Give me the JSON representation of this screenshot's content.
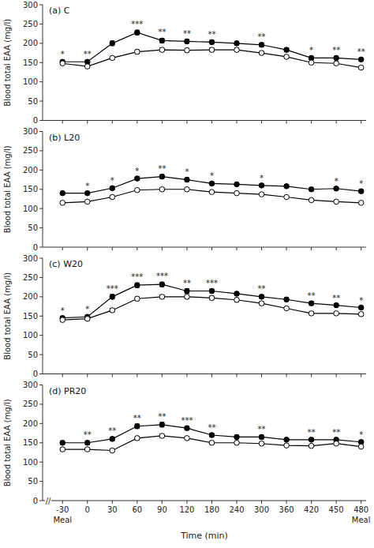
{
  "chart_data": [
    {
      "type": "line",
      "title": "(a) C",
      "ylabel": "Blood total EAA (mg/l)",
      "categories": [
        "-30",
        "0",
        "30",
        "60",
        "90",
        "120",
        "180",
        "240",
        "300",
        "360",
        "420",
        "450",
        "480"
      ],
      "series": [
        {
          "color": "#000000",
          "marker": "filled-circle",
          "line_style": "solid",
          "values": [
            152,
            152,
            200,
            228,
            207,
            205,
            203,
            200,
            196,
            183,
            162,
            162,
            158
          ],
          "errors": [
            4,
            4,
            6,
            6,
            6,
            5,
            5,
            5,
            5,
            5,
            4,
            4,
            4
          ]
        },
        {
          "color": "#000000",
          "marker": "open-circle",
          "line_style": "solid",
          "values": [
            148,
            140,
            162,
            178,
            183,
            182,
            183,
            183,
            175,
            165,
            150,
            148,
            137
          ],
          "errors": [
            4,
            4,
            4,
            5,
            5,
            5,
            5,
            5,
            4,
            4,
            4,
            4,
            4
          ]
        }
      ],
      "annotations": [
        "*",
        "**",
        null,
        "***",
        "**",
        "**",
        "**",
        null,
        "**",
        null,
        "*",
        "**",
        "**"
      ],
      "ylim": [
        0,
        300
      ],
      "yticks": [
        0,
        50,
        100,
        150,
        200,
        250,
        300
      ],
      "grid": false,
      "tick_labels": "y"
    },
    {
      "type": "line",
      "title": "(b) L20",
      "ylabel": "Blood total EAA (mg/l)",
      "categories": [
        "-30",
        "0",
        "30",
        "60",
        "90",
        "120",
        "180",
        "240",
        "300",
        "360",
        "420",
        "450",
        "480"
      ],
      "series": [
        {
          "color": "#000000",
          "marker": "filled-circle",
          "line_style": "solid",
          "values": [
            140,
            140,
            153,
            178,
            183,
            175,
            165,
            163,
            160,
            158,
            150,
            152,
            145
          ],
          "errors": [
            4,
            4,
            4,
            5,
            5,
            5,
            4,
            4,
            4,
            4,
            4,
            4,
            4
          ]
        },
        {
          "color": "#000000",
          "marker": "open-circle",
          "line_style": "solid",
          "values": [
            115,
            118,
            130,
            148,
            150,
            150,
            143,
            140,
            137,
            130,
            122,
            118,
            115
          ],
          "errors": [
            3,
            3,
            3,
            4,
            4,
            4,
            3,
            3,
            3,
            3,
            3,
            3,
            3
          ]
        }
      ],
      "annotations": [
        null,
        "*",
        "*",
        "*",
        "**",
        "*",
        "*",
        null,
        "*",
        null,
        null,
        "*",
        "*"
      ],
      "ylim": [
        0,
        300
      ],
      "yticks": [
        0,
        50,
        100,
        150,
        200,
        250,
        300
      ],
      "grid": false,
      "tick_labels": "y"
    },
    {
      "type": "line",
      "title": "(c) W20",
      "ylabel": "Blood total EAA (mg/l)",
      "categories": [
        "-30",
        "0",
        "30",
        "60",
        "90",
        "120",
        "180",
        "240",
        "300",
        "360",
        "420",
        "450",
        "480"
      ],
      "series": [
        {
          "color": "#000000",
          "marker": "filled-circle",
          "line_style": "solid",
          "values": [
            145,
            148,
            200,
            230,
            232,
            215,
            215,
            208,
            200,
            193,
            183,
            178,
            172
          ],
          "errors": [
            4,
            4,
            6,
            6,
            6,
            6,
            5,
            5,
            5,
            5,
            5,
            4,
            4
          ]
        },
        {
          "color": "#000000",
          "marker": "open-circle",
          "line_style": "solid",
          "values": [
            140,
            143,
            165,
            195,
            200,
            200,
            197,
            192,
            183,
            170,
            157,
            157,
            155
          ],
          "errors": [
            4,
            4,
            5,
            5,
            5,
            5,
            5,
            5,
            5,
            4,
            4,
            4,
            4
          ]
        }
      ],
      "annotations": [
        "*",
        "*",
        "***",
        "***",
        "***",
        "**",
        "***",
        null,
        "**",
        null,
        "**",
        "**",
        "*"
      ],
      "ylim": [
        0,
        300
      ],
      "yticks": [
        0,
        50,
        100,
        150,
        200,
        250,
        300
      ],
      "grid": false,
      "tick_labels": "y"
    },
    {
      "type": "line",
      "title": "(d) PR20",
      "ylabel": "Blood total EAA (mg/l)",
      "xlabel": "Time (min)",
      "categories": [
        "-30",
        "0",
        "30",
        "60",
        "90",
        "120",
        "180",
        "240",
        "300",
        "360",
        "420",
        "450",
        "480"
      ],
      "series": [
        {
          "color": "#000000",
          "marker": "filled-circle",
          "line_style": "solid",
          "values": [
            150,
            150,
            160,
            193,
            197,
            188,
            170,
            165,
            165,
            158,
            158,
            158,
            152
          ],
          "errors": [
            5,
            5,
            5,
            6,
            6,
            5,
            5,
            5,
            5,
            4,
            4,
            4,
            4
          ]
        },
        {
          "color": "#000000",
          "marker": "open-circle",
          "line_style": "solid",
          "values": [
            133,
            133,
            130,
            162,
            168,
            162,
            150,
            150,
            148,
            143,
            142,
            148,
            140
          ],
          "errors": [
            4,
            4,
            4,
            5,
            5,
            5,
            4,
            4,
            4,
            4,
            4,
            4,
            4
          ]
        }
      ],
      "annotations": [
        null,
        "**",
        "**",
        "**",
        "**",
        "***",
        "**",
        null,
        "**",
        null,
        "**",
        "**",
        "*"
      ],
      "category_notes": [
        "Meal",
        null,
        null,
        null,
        null,
        null,
        null,
        null,
        null,
        null,
        null,
        null,
        "Meal"
      ],
      "axis_break": "//",
      "ylim": [
        0,
        300
      ],
      "yticks": [
        0,
        50,
        100,
        150,
        200,
        250,
        300
      ],
      "grid": false
    }
  ]
}
